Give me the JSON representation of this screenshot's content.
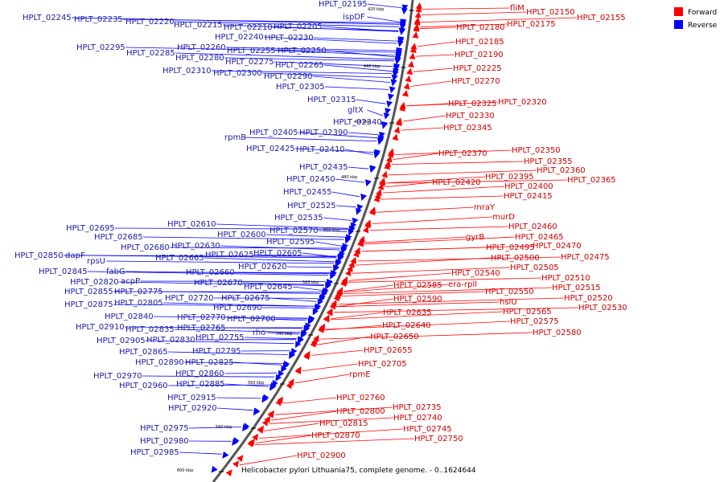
{
  "caption": "Helicobacter pylori Lithuania75, complete genome. - 0..1624644",
  "legend": {
    "forward": {
      "label": "Forward",
      "color": "#ff0000"
    },
    "reverse": {
      "label": "Reverse",
      "color": "#0000ff"
    }
  },
  "ticks": [
    "420 kbp",
    "440 kbp",
    "460 kbp",
    "480 kbp",
    "500 kbp",
    "520 kbp",
    "540 kbp",
    "560 kbp",
    "580 kbp",
    "600 kbp"
  ],
  "reverse_labels": [
    "HPLT_02195",
    "ispDF",
    "HPLT_02245",
    "HPLT_02235",
    "HPLT_02220",
    "HPLT_02215",
    "HPLT_02210",
    "HPLT_02205",
    "HPLT_02240",
    "HPLT_02230",
    "HPLT_02295",
    "HPLT_02285",
    "HPLT_02260",
    "HPLT_02255",
    "HPLT_02250",
    "HPLT_02280",
    "HPLT_02275",
    "HPLT_02265",
    "HPLT_02310",
    "HPLT_02300",
    "HPLT_02290",
    "HPLT_02305",
    "HPLT_02315",
    "gltX",
    "HPLT_02340",
    "rpmB",
    "HPLT_02405",
    "HPLT_02390",
    "HPLT_02425",
    "HPLT_02410",
    "HPLT_02435",
    "HPLT_02450",
    "HPLT_02455",
    "HPLT_02525",
    "HPLT_02535",
    "HPLT_02610",
    "HPLT_02570",
    "HPLT_02600",
    "HPLT_02595",
    "HPLT_02695",
    "HPLT_02685",
    "HPLT_02630",
    "HPLT_02680",
    "HPLT_02625",
    "HPLT_02605",
    "HPLT_02850",
    "dapF",
    "HPLT_02665",
    "HPLT_02620",
    "rpsU",
    "HPLT_02845",
    "HPLT_02660",
    "fabG",
    "HPLT_02820",
    "acpP",
    "HPLT_02670",
    "HPLT_02645",
    "HPLT_02855",
    "HPLT_02775",
    "HPLT_02675",
    "HPLT_02720",
    "HPLT_02875",
    "HPLT_02805",
    "HPLT_02690",
    "HPLT_02840",
    "HPLT_02770",
    "HPLT_02700",
    "HPLT_02910",
    "HPLT_02835",
    "HPLT_02765",
    "rho",
    "HPLT_02905",
    "HPLT_02830",
    "HPLT_02755",
    "HPLT_02865",
    "HPLT_02795",
    "HPLT_02890",
    "HPLT_02825",
    "HPLT_02860",
    "HPLT_02970",
    "HPLT_02885",
    "HPLT_02960",
    "HPLT_02915",
    "HPLT_02920",
    "HPLT_02975",
    "HPLT_02980",
    "HPLT_02985"
  ],
  "forward_labels": [
    "fliM",
    "HPLT_02150",
    "HPLT_02155",
    "HPLT_02180",
    "HPLT_02175",
    "HPLT_02185",
    "HPLT_02190",
    "HPLT_02225",
    "HPLT_02270",
    "HPLT_02325",
    "HPLT_02320",
    "HPLT_02330",
    "HPLT_02345",
    "HPLT_02350",
    "HPLT_02370",
    "HPLT_02355",
    "HPLT_02360",
    "HPLT_02395",
    "HPLT_02365",
    "HPLT_02420",
    "HPLT_02400",
    "HPLT_02415",
    "mraY",
    "murD",
    "HPLT_02460",
    "gyrB",
    "HPLT_02465",
    "HPLT_02495",
    "HPLT_02470",
    "HPLT_02500",
    "HPLT_02475",
    "HPLT_02505",
    "HPLT_02540",
    "HPLT_02510",
    "HPLT_02585",
    "era-rpll",
    "HPLT_02550",
    "HPLT_02515",
    "HPLT_02590",
    "hslU",
    "HPLT_02520",
    "HPLT_02565",
    "HPLT_02530",
    "HPLT_02635",
    "HPLT_02575",
    "HPLT_02640",
    "HPLT_02580",
    "HPLT_02650",
    "HPLT_02655",
    "HPLT_02705",
    "rpmE",
    "HPLT_02760",
    "HPLT_02735",
    "HPLT_02800",
    "HPLT_02740",
    "HPLT_02815",
    "HPLT_02745",
    "HPLT_02750",
    "HPLT_02870",
    "HPLT_02900"
  ]
}
